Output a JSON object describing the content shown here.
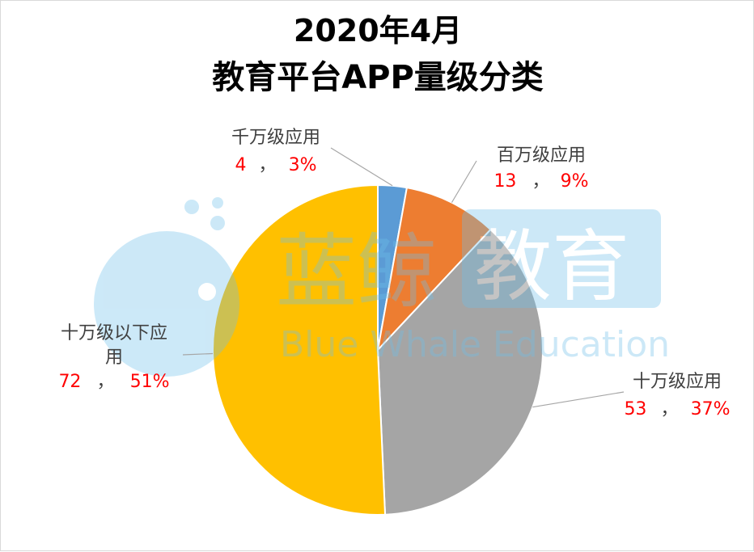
{
  "chart_data": {
    "type": "pie",
    "title": "2020年4月",
    "subtitle": "教育平台APP量级分类",
    "slices": [
      {
        "label": "千万级应用",
        "value": 4,
        "percent": "3%",
        "color": "#5b9bd5"
      },
      {
        "label": "百万级应用",
        "value": 13,
        "percent": "9%",
        "color": "#ed7d31"
      },
      {
        "label": "十万级应用",
        "value": 53,
        "percent": "37%",
        "color": "#a5a5a5"
      },
      {
        "label": "十万级以下应用",
        "value": 72,
        "percent": "51%",
        "color": "#ffc000"
      }
    ],
    "separator": "，"
  },
  "watermark": {
    "brand_cn_1": "蓝鲸",
    "brand_cn_2": "教育",
    "brand_en": "Blue Whale Education"
  },
  "colors": {
    "leader_line": "#a6a6a6",
    "value_text": "#ff0000",
    "label_text": "#404040"
  }
}
